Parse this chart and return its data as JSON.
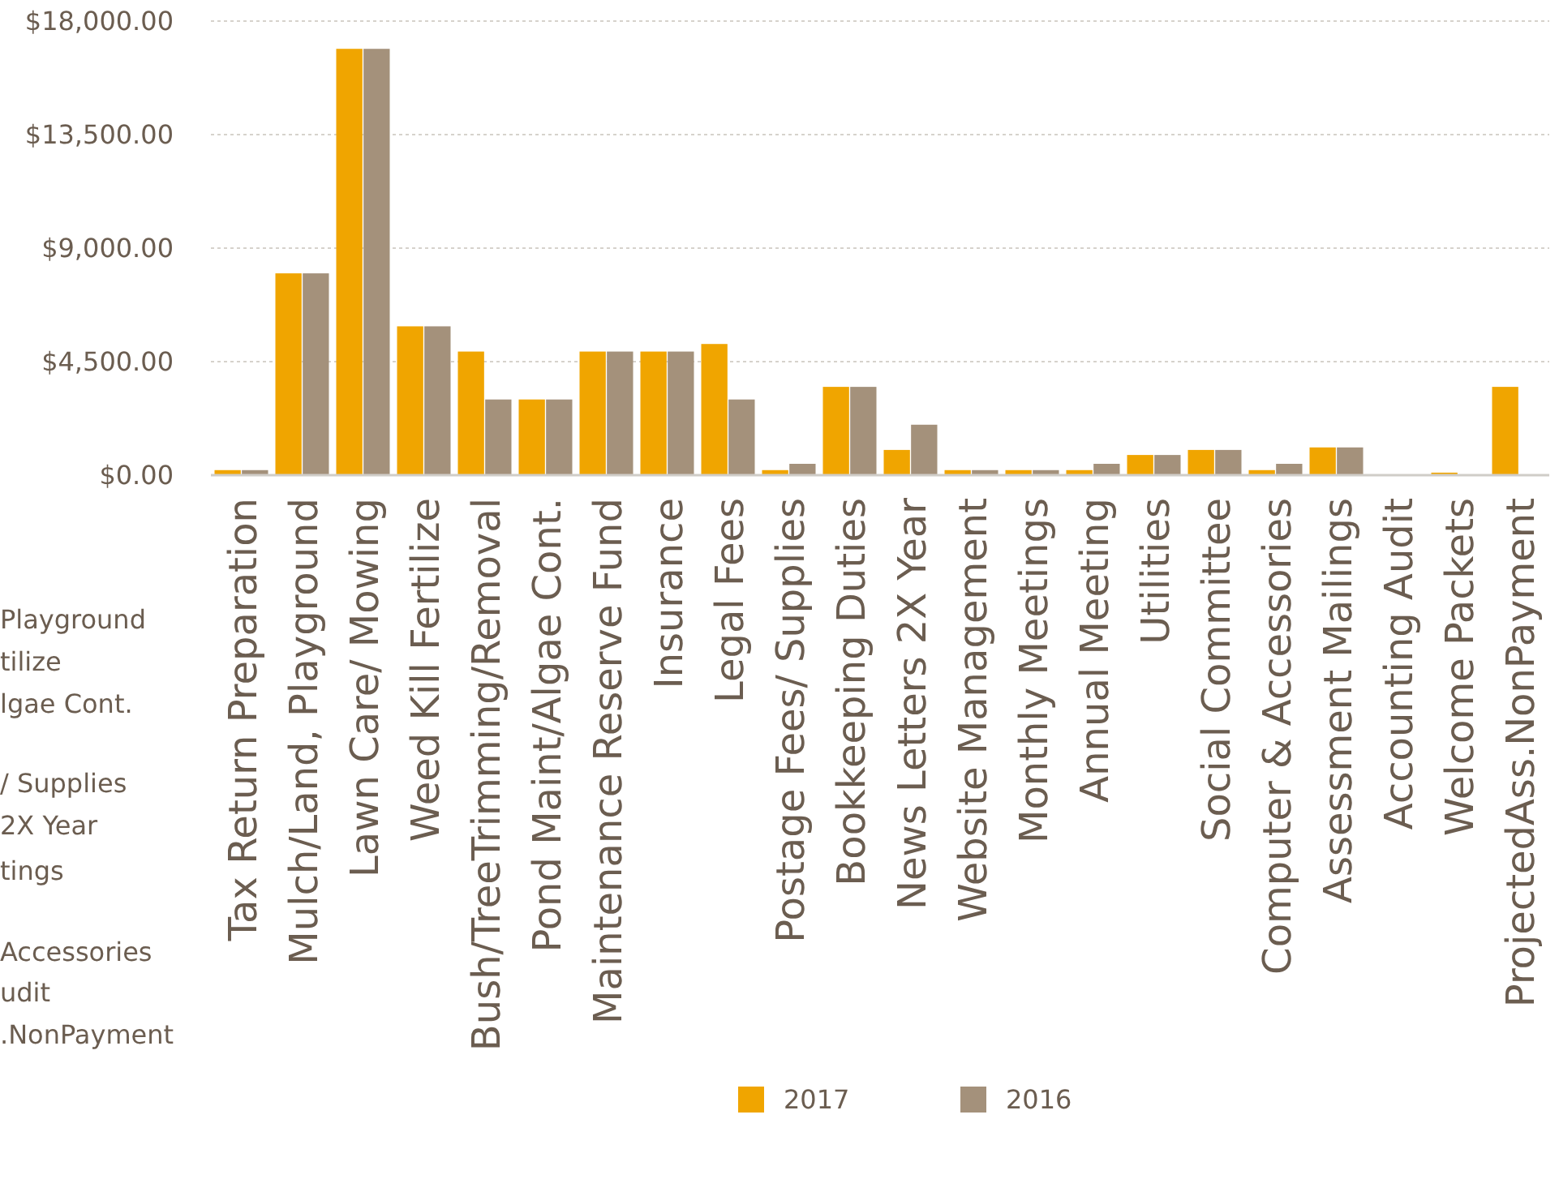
{
  "chart_data": {
    "type": "bar",
    "categories": [
      "Tax Return Preparation",
      "Mulch/Land, Playground",
      "Lawn Care/ Mowing",
      "Weed Kill Fertilize",
      "Bush/TreeTrimming/Removal",
      "Pond Maint/Algae Cont.",
      "Maintenance  Reserve Fund",
      "Insurance",
      "Legal Fees",
      "Postage Fees/ Supplies",
      "Bookkeeping Duties",
      "News Letters 2X Year",
      "Website Management",
      "Monthly Meetings",
      "Annual Meeting",
      "Utilities",
      "Social Committee",
      "Computer & Accessories",
      "Assessment Mailings",
      "Accounting Audit",
      "Welcome Packets",
      "ProjectedAss.NonPayment"
    ],
    "series": [
      {
        "name": "2017",
        "color": "#f0a500",
        "values": [
          200,
          8000,
          16900,
          5900,
          4900,
          3000,
          4900,
          4900,
          5200,
          200,
          3500,
          1000,
          200,
          200,
          200,
          800,
          1000,
          200,
          1100,
          0,
          100,
          3500
        ]
      },
      {
        "name": "2016",
        "color": "#a4917b",
        "values": [
          200,
          8000,
          16900,
          5900,
          3000,
          3000,
          4900,
          4900,
          3000,
          450,
          3500,
          2000,
          200,
          200,
          450,
          800,
          1000,
          450,
          1100,
          0,
          0,
          0
        ]
      }
    ],
    "ylim": [
      0,
      18000
    ],
    "yticks": [
      {
        "value": 0,
        "label": "$0.00"
      },
      {
        "value": 4500,
        "label": "$4,500.00"
      },
      {
        "value": 9000,
        "label": "$9,000.00"
      },
      {
        "value": 13500,
        "label": "$13,500.00"
      },
      {
        "value": 18000,
        "label": "$18,000.00"
      }
    ],
    "grid": "y",
    "legend": "bottom",
    "annotations": [
      "Playground",
      "tilize",
      "lgae Cont.",
      "/ Supplies",
      "2X Year",
      "tings",
      "Accessories",
      "udit",
      ".NonPayment"
    ]
  }
}
